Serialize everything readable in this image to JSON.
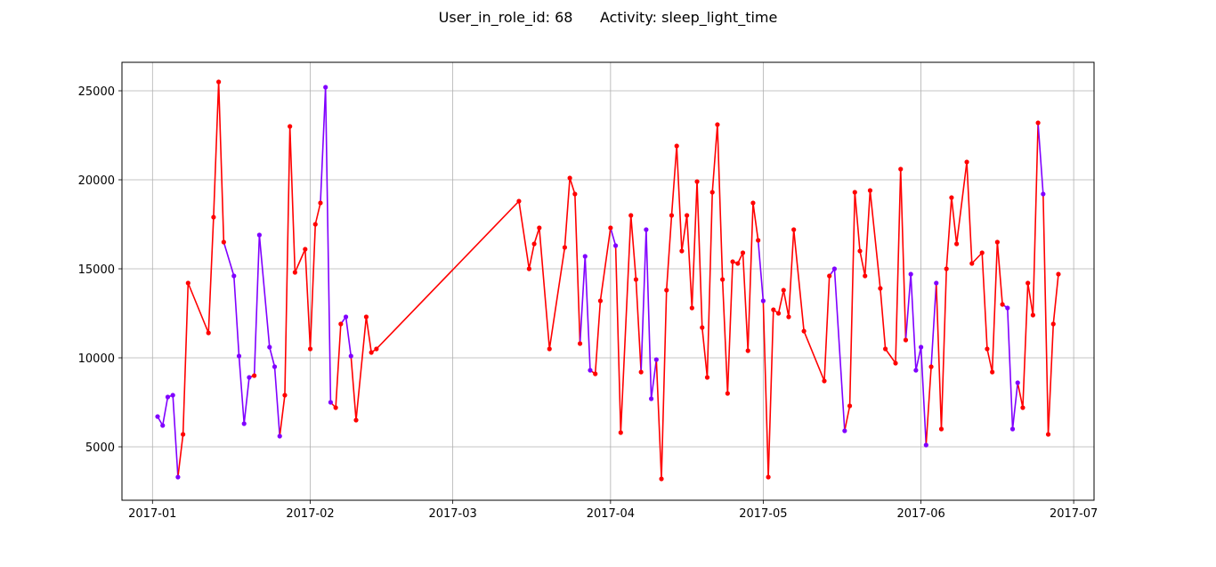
{
  "chart_data": {
    "type": "line",
    "title": "User_in_role_id: 68      Activity: sleep_light_time",
    "xlabel": "",
    "ylabel": "",
    "xlim": [
      "2016-12-26",
      "2017-07-05"
    ],
    "ylim": [
      2000,
      26600
    ],
    "grid": true,
    "x_ticks": [
      "2017-01",
      "2017-02",
      "2017-03",
      "2017-04",
      "2017-05",
      "2017-06",
      "2017-07"
    ],
    "y_ticks": [
      5000,
      10000,
      15000,
      20000,
      25000
    ],
    "colors": {
      "purple": "#8000ff",
      "red": "#ff0000"
    },
    "points": [
      {
        "x": "2017-01-02",
        "y": 6700,
        "c": "purple"
      },
      {
        "x": "2017-01-03",
        "y": 6200,
        "c": "purple"
      },
      {
        "x": "2017-01-04",
        "y": 7800,
        "c": "purple"
      },
      {
        "x": "2017-01-05",
        "y": 7900,
        "c": "purple"
      },
      {
        "x": "2017-01-06",
        "y": 3300,
        "c": "purple"
      },
      {
        "x": "2017-01-07",
        "y": 5700,
        "c": "red"
      },
      {
        "x": "2017-01-08",
        "y": 14200,
        "c": "red"
      },
      {
        "x": "2017-01-12",
        "y": 11400,
        "c": "red"
      },
      {
        "x": "2017-01-13",
        "y": 17900,
        "c": "red"
      },
      {
        "x": "2017-01-14",
        "y": 25500,
        "c": "red"
      },
      {
        "x": "2017-01-15",
        "y": 16500,
        "c": "red"
      },
      {
        "x": "2017-01-17",
        "y": 14600,
        "c": "purple"
      },
      {
        "x": "2017-01-18",
        "y": 10100,
        "c": "purple"
      },
      {
        "x": "2017-01-19",
        "y": 6300,
        "c": "purple"
      },
      {
        "x": "2017-01-20",
        "y": 8900,
        "c": "purple"
      },
      {
        "x": "2017-01-21",
        "y": 9000,
        "c": "red"
      },
      {
        "x": "2017-01-22",
        "y": 16900,
        "c": "purple"
      },
      {
        "x": "2017-01-24",
        "y": 10600,
        "c": "purple"
      },
      {
        "x": "2017-01-25",
        "y": 9500,
        "c": "purple"
      },
      {
        "x": "2017-01-26",
        "y": 5600,
        "c": "purple"
      },
      {
        "x": "2017-01-27",
        "y": 7900,
        "c": "red"
      },
      {
        "x": "2017-01-28",
        "y": 23000,
        "c": "red"
      },
      {
        "x": "2017-01-29",
        "y": 14800,
        "c": "red"
      },
      {
        "x": "2017-01-31",
        "y": 16100,
        "c": "red"
      },
      {
        "x": "2017-02-01",
        "y": 10500,
        "c": "red"
      },
      {
        "x": "2017-02-02",
        "y": 17500,
        "c": "red"
      },
      {
        "x": "2017-02-03",
        "y": 18700,
        "c": "red"
      },
      {
        "x": "2017-02-04",
        "y": 25200,
        "c": "purple"
      },
      {
        "x": "2017-02-05",
        "y": 7500,
        "c": "purple"
      },
      {
        "x": "2017-02-06",
        "y": 7200,
        "c": "red"
      },
      {
        "x": "2017-02-07",
        "y": 11900,
        "c": "red"
      },
      {
        "x": "2017-02-08",
        "y": 12300,
        "c": "purple"
      },
      {
        "x": "2017-02-09",
        "y": 10100,
        "c": "purple"
      },
      {
        "x": "2017-02-10",
        "y": 6500,
        "c": "red"
      },
      {
        "x": "2017-02-12",
        "y": 12300,
        "c": "red"
      },
      {
        "x": "2017-02-13",
        "y": 10300,
        "c": "red"
      },
      {
        "x": "2017-02-14",
        "y": 10500,
        "c": "red"
      },
      {
        "x": "2017-03-14",
        "y": 18800,
        "c": "red"
      },
      {
        "x": "2017-03-16",
        "y": 15000,
        "c": "red"
      },
      {
        "x": "2017-03-17",
        "y": 16400,
        "c": "red"
      },
      {
        "x": "2017-03-18",
        "y": 17300,
        "c": "red"
      },
      {
        "x": "2017-03-20",
        "y": 10500,
        "c": "red"
      },
      {
        "x": "2017-03-23",
        "y": 16200,
        "c": "red"
      },
      {
        "x": "2017-03-24",
        "y": 20100,
        "c": "red"
      },
      {
        "x": "2017-03-25",
        "y": 19200,
        "c": "red"
      },
      {
        "x": "2017-03-26",
        "y": 10800,
        "c": "red"
      },
      {
        "x": "2017-03-27",
        "y": 15700,
        "c": "purple"
      },
      {
        "x": "2017-03-28",
        "y": 9300,
        "c": "purple"
      },
      {
        "x": "2017-03-29",
        "y": 9100,
        "c": "red"
      },
      {
        "x": "2017-03-30",
        "y": 13200,
        "c": "red"
      },
      {
        "x": "2017-04-01",
        "y": 17300,
        "c": "red"
      },
      {
        "x": "2017-04-02",
        "y": 16300,
        "c": "purple"
      },
      {
        "x": "2017-04-03",
        "y": 5800,
        "c": "red"
      },
      {
        "x": "2017-04-05",
        "y": 18000,
        "c": "red"
      },
      {
        "x": "2017-04-06",
        "y": 14400,
        "c": "red"
      },
      {
        "x": "2017-04-07",
        "y": 9200,
        "c": "red"
      },
      {
        "x": "2017-04-08",
        "y": 17200,
        "c": "purple"
      },
      {
        "x": "2017-04-09",
        "y": 7700,
        "c": "purple"
      },
      {
        "x": "2017-04-10",
        "y": 9900,
        "c": "purple"
      },
      {
        "x": "2017-04-11",
        "y": 3200,
        "c": "red"
      },
      {
        "x": "2017-04-12",
        "y": 13800,
        "c": "red"
      },
      {
        "x": "2017-04-13",
        "y": 18000,
        "c": "red"
      },
      {
        "x": "2017-04-14",
        "y": 21900,
        "c": "red"
      },
      {
        "x": "2017-04-15",
        "y": 16000,
        "c": "red"
      },
      {
        "x": "2017-04-16",
        "y": 18000,
        "c": "red"
      },
      {
        "x": "2017-04-17",
        "y": 12800,
        "c": "red"
      },
      {
        "x": "2017-04-18",
        "y": 19900,
        "c": "red"
      },
      {
        "x": "2017-04-19",
        "y": 11700,
        "c": "red"
      },
      {
        "x": "2017-04-20",
        "y": 8900,
        "c": "red"
      },
      {
        "x": "2017-04-21",
        "y": 19300,
        "c": "red"
      },
      {
        "x": "2017-04-22",
        "y": 23100,
        "c": "red"
      },
      {
        "x": "2017-04-23",
        "y": 14400,
        "c": "red"
      },
      {
        "x": "2017-04-24",
        "y": 8000,
        "c": "red"
      },
      {
        "x": "2017-04-25",
        "y": 15400,
        "c": "red"
      },
      {
        "x": "2017-04-26",
        "y": 15300,
        "c": "red"
      },
      {
        "x": "2017-04-27",
        "y": 15900,
        "c": "red"
      },
      {
        "x": "2017-04-28",
        "y": 10400,
        "c": "red"
      },
      {
        "x": "2017-04-29",
        "y": 18700,
        "c": "red"
      },
      {
        "x": "2017-04-30",
        "y": 16600,
        "c": "red"
      },
      {
        "x": "2017-05-01",
        "y": 13200,
        "c": "purple"
      },
      {
        "x": "2017-05-02",
        "y": 3300,
        "c": "red"
      },
      {
        "x": "2017-05-03",
        "y": 12700,
        "c": "red"
      },
      {
        "x": "2017-05-04",
        "y": 12500,
        "c": "red"
      },
      {
        "x": "2017-05-05",
        "y": 13800,
        "c": "red"
      },
      {
        "x": "2017-05-06",
        "y": 12300,
        "c": "red"
      },
      {
        "x": "2017-05-07",
        "y": 17200,
        "c": "red"
      },
      {
        "x": "2017-05-09",
        "y": 11500,
        "c": "red"
      },
      {
        "x": "2017-05-13",
        "y": 8700,
        "c": "red"
      },
      {
        "x": "2017-05-14",
        "y": 14600,
        "c": "red"
      },
      {
        "x": "2017-05-15",
        "y": 15000,
        "c": "purple"
      },
      {
        "x": "2017-05-17",
        "y": 5900,
        "c": "purple"
      },
      {
        "x": "2017-05-18",
        "y": 7300,
        "c": "red"
      },
      {
        "x": "2017-05-19",
        "y": 19300,
        "c": "red"
      },
      {
        "x": "2017-05-20",
        "y": 16000,
        "c": "red"
      },
      {
        "x": "2017-05-21",
        "y": 14600,
        "c": "red"
      },
      {
        "x": "2017-05-22",
        "y": 19400,
        "c": "red"
      },
      {
        "x": "2017-05-24",
        "y": 13900,
        "c": "red"
      },
      {
        "x": "2017-05-25",
        "y": 10500,
        "c": "red"
      },
      {
        "x": "2017-05-27",
        "y": 9700,
        "c": "red"
      },
      {
        "x": "2017-05-28",
        "y": 20600,
        "c": "red"
      },
      {
        "x": "2017-05-29",
        "y": 11000,
        "c": "red"
      },
      {
        "x": "2017-05-30",
        "y": 14700,
        "c": "purple"
      },
      {
        "x": "2017-05-31",
        "y": 9300,
        "c": "purple"
      },
      {
        "x": "2017-06-01",
        "y": 10600,
        "c": "purple"
      },
      {
        "x": "2017-06-02",
        "y": 5100,
        "c": "purple"
      },
      {
        "x": "2017-06-03",
        "y": 9500,
        "c": "red"
      },
      {
        "x": "2017-06-04",
        "y": 14200,
        "c": "purple"
      },
      {
        "x": "2017-06-05",
        "y": 6000,
        "c": "red"
      },
      {
        "x": "2017-06-06",
        "y": 15000,
        "c": "red"
      },
      {
        "x": "2017-06-07",
        "y": 19000,
        "c": "red"
      },
      {
        "x": "2017-06-08",
        "y": 16400,
        "c": "red"
      },
      {
        "x": "2017-06-10",
        "y": 21000,
        "c": "red"
      },
      {
        "x": "2017-06-11",
        "y": 15300,
        "c": "red"
      },
      {
        "x": "2017-06-13",
        "y": 15900,
        "c": "red"
      },
      {
        "x": "2017-06-14",
        "y": 10500,
        "c": "red"
      },
      {
        "x": "2017-06-15",
        "y": 9200,
        "c": "red"
      },
      {
        "x": "2017-06-16",
        "y": 16500,
        "c": "red"
      },
      {
        "x": "2017-06-17",
        "y": 13000,
        "c": "red"
      },
      {
        "x": "2017-06-18",
        "y": 12800,
        "c": "purple"
      },
      {
        "x": "2017-06-19",
        "y": 6000,
        "c": "purple"
      },
      {
        "x": "2017-06-20",
        "y": 8600,
        "c": "purple"
      },
      {
        "x": "2017-06-21",
        "y": 7200,
        "c": "red"
      },
      {
        "x": "2017-06-22",
        "y": 14200,
        "c": "red"
      },
      {
        "x": "2017-06-23",
        "y": 12400,
        "c": "red"
      },
      {
        "x": "2017-06-24",
        "y": 23200,
        "c": "red"
      },
      {
        "x": "2017-06-25",
        "y": 19200,
        "c": "purple"
      },
      {
        "x": "2017-06-26",
        "y": 5700,
        "c": "red"
      },
      {
        "x": "2017-06-27",
        "y": 11900,
        "c": "red"
      },
      {
        "x": "2017-06-28",
        "y": 14700,
        "c": "red"
      }
    ]
  }
}
